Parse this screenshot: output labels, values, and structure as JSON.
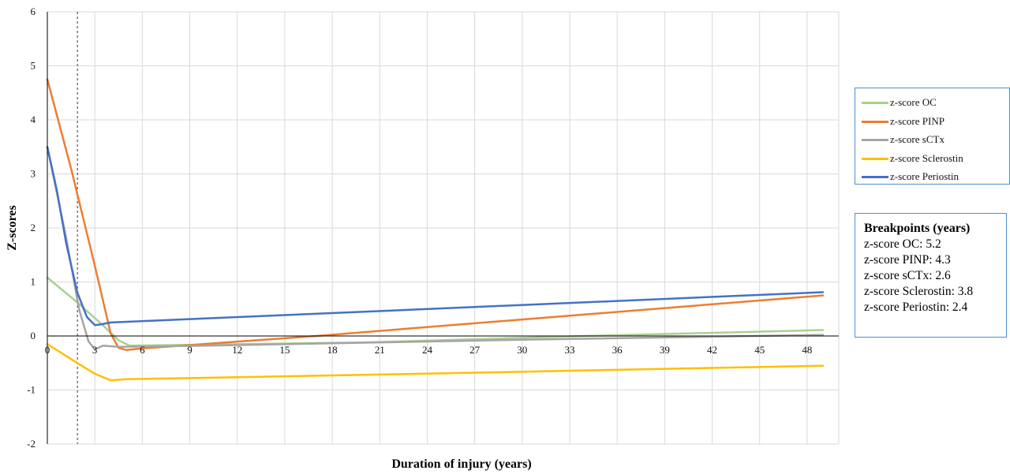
{
  "chart_data": {
    "type": "line",
    "title": "",
    "xlabel": "Duration of injury (years)",
    "ylabel": "Z-scores",
    "xlim": [
      0,
      50
    ],
    "ylim": [
      -2,
      6
    ],
    "x_ticks": [
      "0",
      "3",
      "6",
      "9",
      "12",
      "15",
      "18",
      "21",
      "24",
      "27",
      "30",
      "33",
      "36",
      "39",
      "42",
      "45",
      "48"
    ],
    "y_ticks": [
      "-2",
      "-1",
      "0",
      "1",
      "2",
      "3",
      "4",
      "5",
      "6"
    ],
    "grid": true,
    "legend_position": "right",
    "vertical_reference_line_x": 1.9,
    "series": [
      {
        "name": "z-score OC",
        "color": "#a9d18e",
        "points": [
          [
            0,
            1.08
          ],
          [
            1.9,
            0.62
          ],
          [
            3.5,
            0.2
          ],
          [
            4.5,
            -0.08
          ],
          [
            5.2,
            -0.18
          ],
          [
            20,
            -0.12
          ],
          [
            34,
            0.0
          ],
          [
            49,
            0.11
          ]
        ]
      },
      {
        "name": "z-score PINP",
        "color": "#ed7d31",
        "points": [
          [
            0,
            4.75
          ],
          [
            1.5,
            3.1
          ],
          [
            3,
            1.3
          ],
          [
            4.0,
            0.05
          ],
          [
            4.5,
            -0.22
          ],
          [
            5.0,
            -0.26
          ],
          [
            6,
            -0.23
          ],
          [
            17,
            0.0
          ],
          [
            49,
            0.75
          ]
        ]
      },
      {
        "name": "z-score sCTx",
        "color": "#a5a5a5",
        "points": [
          [
            0,
            3.5
          ],
          [
            1.2,
            1.8
          ],
          [
            2.0,
            0.5
          ],
          [
            2.6,
            -0.1
          ],
          [
            3.0,
            -0.25
          ],
          [
            3.5,
            -0.18
          ],
          [
            4.5,
            -0.2
          ],
          [
            10,
            -0.18
          ],
          [
            30,
            -0.07
          ],
          [
            49,
            0.02
          ]
        ]
      },
      {
        "name": "z-score Sclerostin",
        "color": "#ffc000",
        "points": [
          [
            0,
            -0.15
          ],
          [
            1.9,
            -0.5
          ],
          [
            3.0,
            -0.7
          ],
          [
            4.0,
            -0.82
          ],
          [
            5.0,
            -0.8
          ],
          [
            20,
            -0.72
          ],
          [
            49,
            -0.55
          ]
        ]
      },
      {
        "name": "z-score Periostin",
        "color": "#4472c4",
        "points": [
          [
            0,
            3.5
          ],
          [
            0.6,
            2.7
          ],
          [
            1.2,
            1.7
          ],
          [
            1.9,
            0.8
          ],
          [
            2.5,
            0.35
          ],
          [
            3.0,
            0.2
          ],
          [
            3.5,
            0.22
          ],
          [
            4.0,
            0.25
          ],
          [
            49,
            0.81
          ]
        ]
      }
    ]
  },
  "breakpoints": {
    "title": "Breakpoints (years)",
    "lines": [
      "z-score OC: 5.2",
      "z-score PINP: 4.3",
      "z-score sCTx: 2.6",
      "z-score Sclerostin: 3.8",
      "z-score Periostin: 2.4"
    ]
  }
}
